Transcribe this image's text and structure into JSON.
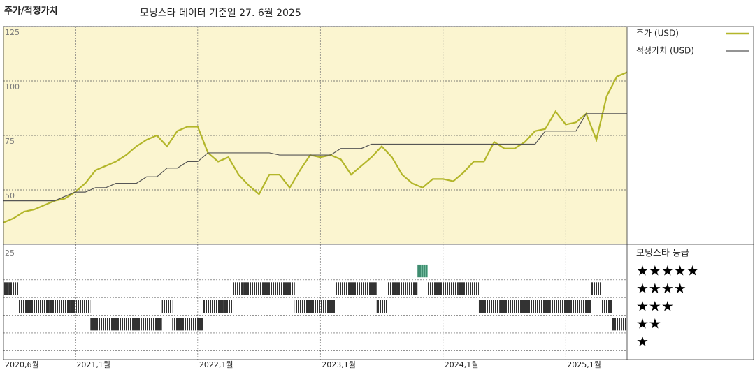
{
  "chart_data": [
    {
      "type": "line",
      "title": "주가/적정가치",
      "subtitle": "모닝스타 데이터 기준일 27. 6월 2025",
      "x": [
        "2020-06",
        "2020-07",
        "2020-08",
        "2020-09",
        "2020-10",
        "2020-11",
        "2020-12",
        "2021-01",
        "2021-02",
        "2021-03",
        "2021-04",
        "2021-05",
        "2021-06",
        "2021-07",
        "2021-08",
        "2021-09",
        "2021-10",
        "2021-11",
        "2021-12",
        "2022-01",
        "2022-02",
        "2022-03",
        "2022-04",
        "2022-05",
        "2022-06",
        "2022-07",
        "2022-08",
        "2022-09",
        "2022-10",
        "2022-11",
        "2022-12",
        "2023-01",
        "2023-02",
        "2023-03",
        "2023-04",
        "2023-05",
        "2023-06",
        "2023-07",
        "2023-08",
        "2023-09",
        "2023-10",
        "2023-11",
        "2023-12",
        "2024-01",
        "2024-02",
        "2024-03",
        "2024-04",
        "2024-05",
        "2024-06",
        "2024-07",
        "2024-08",
        "2024-09",
        "2024-10",
        "2024-11",
        "2024-12",
        "2025-01",
        "2025-02",
        "2025-03",
        "2025-04",
        "2025-05",
        "2025-06",
        "2025-07"
      ],
      "series": [
        {
          "name": "주가 (USD)",
          "color": "#b3b62a",
          "values": [
            35,
            37,
            40,
            41,
            43,
            45,
            46,
            49,
            53,
            59,
            61,
            63,
            66,
            70,
            73,
            75,
            70,
            77,
            79,
            79,
            67,
            63,
            65,
            57,
            52,
            48,
            57,
            57,
            51,
            59,
            66,
            65,
            66,
            64,
            57,
            61,
            65,
            70,
            65,
            57,
            53,
            51,
            55,
            55,
            54,
            58,
            63,
            63,
            72,
            69,
            69,
            72,
            77,
            78,
            86,
            80,
            81,
            85,
            73,
            93,
            102,
            104
          ]
        },
        {
          "name": "적정가치 (USD)",
          "color": "#555555",
          "values": [
            45,
            45,
            45,
            45,
            45,
            45,
            47,
            49,
            49,
            51,
            51,
            53,
            53,
            53,
            56,
            56,
            60,
            60,
            63,
            63,
            67,
            67,
            67,
            67,
            67,
            67,
            67,
            66,
            66,
            66,
            66,
            66,
            66,
            69,
            69,
            69,
            71,
            71,
            71,
            71,
            71,
            71,
            71,
            71,
            71,
            71,
            71,
            71,
            71,
            71,
            71,
            71,
            71,
            77,
            77,
            77,
            77,
            85,
            85,
            85,
            85,
            85
          ]
        }
      ],
      "xlim": [
        "2020-06",
        "2025-07"
      ],
      "xticks": [
        {
          "value": "2020-06",
          "label": "2020,6월"
        },
        {
          "value": "2021-01",
          "label": "2021,1월"
        },
        {
          "value": "2022-01",
          "label": "2022,1월"
        },
        {
          "value": "2023-01",
          "label": "2023,1월"
        },
        {
          "value": "2024-01",
          "label": "2024,1월"
        },
        {
          "value": "2025-01",
          "label": "2025,1월"
        }
      ],
      "ylim": [
        25,
        125
      ],
      "yticks": [
        50,
        75,
        100,
        125
      ],
      "background": "#fbf5d0",
      "grid": true
    },
    {
      "type": "rating",
      "title": "모닝스타 등급",
      "corner_label": "25",
      "levels": [
        "★★★★★",
        "★★★★",
        "★★★",
        "★★",
        "★"
      ],
      "values": [
        4,
        4,
        3,
        3,
        3,
        3,
        3,
        3,
        3,
        2,
        2,
        2,
        2,
        2,
        2,
        2,
        3,
        2,
        2,
        2,
        3,
        3,
        3,
        4,
        4,
        4,
        4,
        4,
        4,
        3,
        3,
        3,
        3,
        4,
        4,
        4,
        4,
        3,
        4,
        4,
        4,
        5,
        4,
        4,
        4,
        4,
        4,
        3,
        3,
        3,
        3,
        3,
        3,
        3,
        3,
        3,
        3,
        3,
        4,
        3,
        2,
        2
      ],
      "color": "#333333",
      "top_color": "#3f8c70",
      "ylim": [
        0,
        6.5
      ]
    }
  ]
}
